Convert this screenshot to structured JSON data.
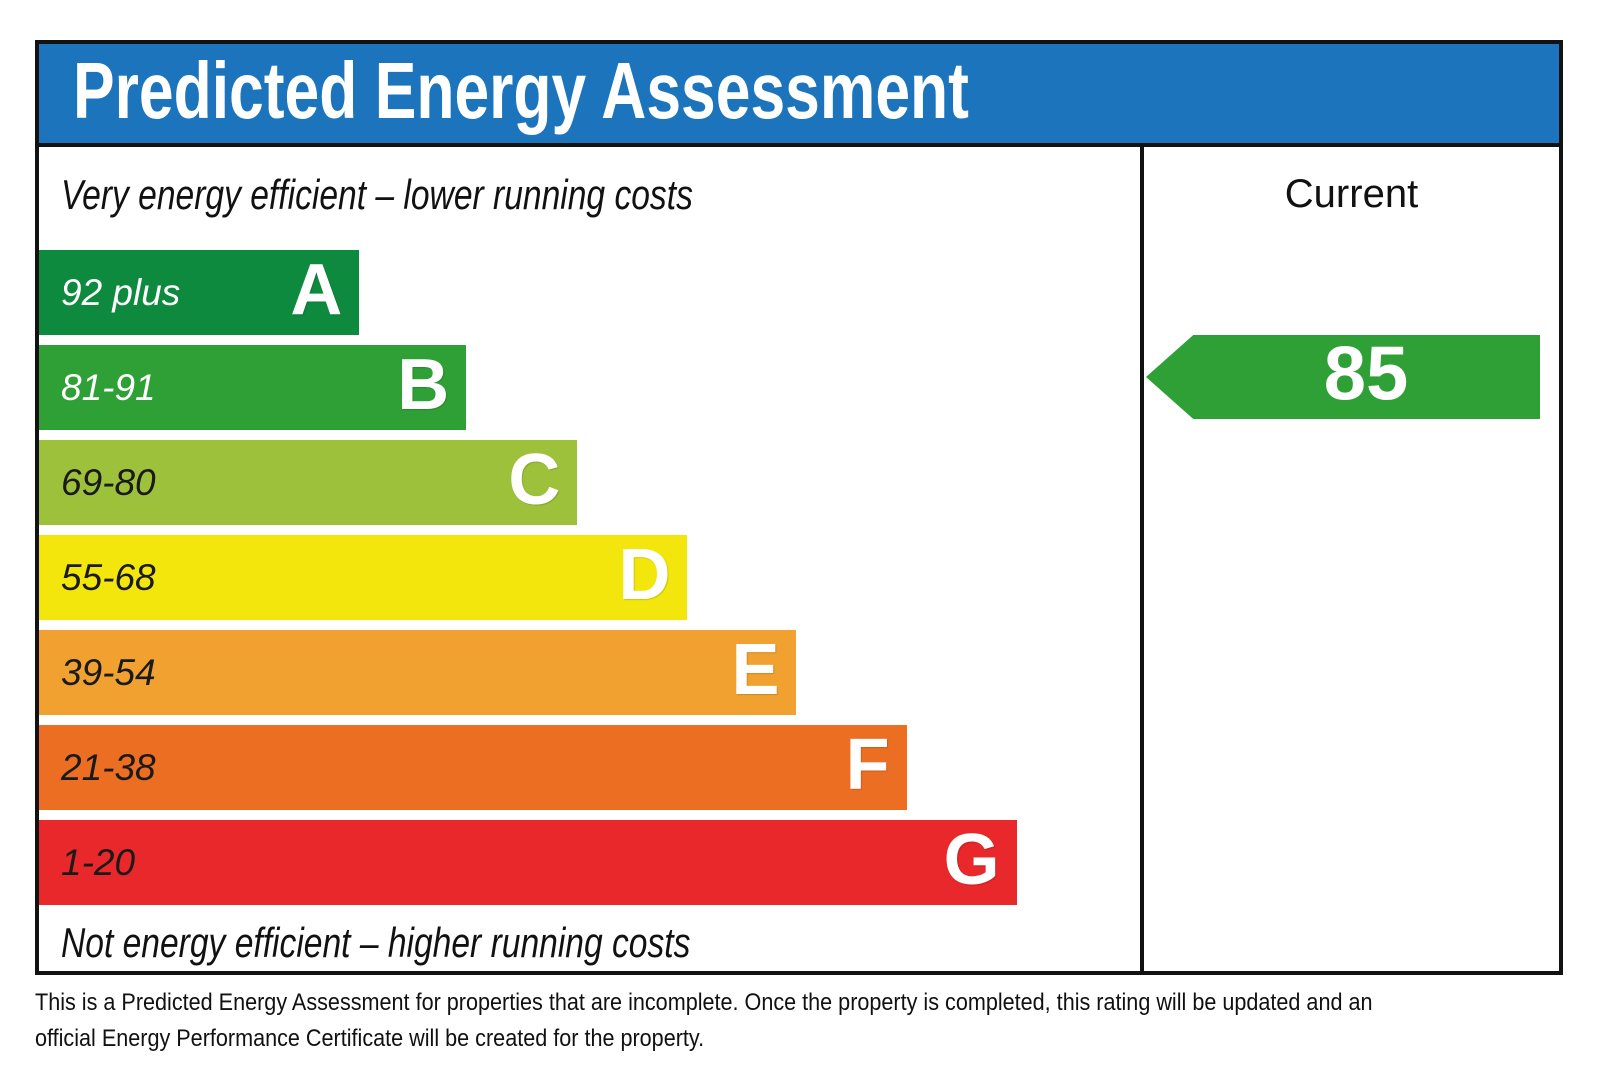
{
  "title": "Predicted Energy Assessment",
  "colors": {
    "header_bg": "#1c75bc",
    "border": "#121212",
    "arrow_green": "#2fa036"
  },
  "left_panel": {
    "top_note": "Very energy efficient – lower running costs",
    "bottom_note": "Not energy efficient – higher running costs"
  },
  "right_panel": {
    "header": "Current",
    "value": "85",
    "arrow_color": "#2fa036"
  },
  "bands": [
    {
      "letter": "A",
      "range": "92 plus",
      "color": "#0e8a3e",
      "width": "29.1%",
      "label_color": "#ffffff"
    },
    {
      "letter": "B",
      "range": "81-91",
      "color": "#2fa036",
      "width": "38.8%",
      "label_color": "#ffffff"
    },
    {
      "letter": "C",
      "range": "69-80",
      "color": "#9ec13c",
      "width": "48.9%",
      "label_color": "#1a1a1a"
    },
    {
      "letter": "D",
      "range": "55-68",
      "color": "#f3e60c",
      "width": "58.9%",
      "label_color": "#1a1a1a"
    },
    {
      "letter": "E",
      "range": "39-54",
      "color": "#f0a12f",
      "width": "68.8%",
      "label_color": "#1a1a1a"
    },
    {
      "letter": "F",
      "range": "21-38",
      "color": "#ec6e23",
      "width": "78.8%",
      "label_color": "#1a1a1a"
    },
    {
      "letter": "G",
      "range": "1-20",
      "color": "#e8282a",
      "width": "88.8%",
      "label_color": "#1a1a1a"
    }
  ],
  "footer": {
    "line1": "This is a Predicted Energy Assessment for properties that are incomplete. Once the property is completed, this rating will be updated and an",
    "line2": "official Energy Performance Certificate will be created for the property."
  },
  "chart_data": {
    "type": "bar",
    "title": "Predicted Energy Assessment",
    "orientation": "horizontal",
    "categories": [
      "A",
      "B",
      "C",
      "D",
      "E",
      "F",
      "G"
    ],
    "band_score_ranges": [
      "92 plus",
      "81-91",
      "69-80",
      "55-68",
      "39-54",
      "21-38",
      "1-20"
    ],
    "band_colors": [
      "#0e8a3e",
      "#2fa036",
      "#9ec13c",
      "#f3e60c",
      "#f0a12f",
      "#ec6e23",
      "#e8282a"
    ],
    "bar_lengths_fraction_of_panel": [
      0.29,
      0.39,
      0.49,
      0.59,
      0.69,
      0.79,
      0.89
    ],
    "series": [
      {
        "name": "Current",
        "value": 85,
        "band": "B",
        "marker": "left-pointing-arrow",
        "color": "#2fa036"
      }
    ],
    "top_annotation": "Very energy efficient – lower running costs",
    "bottom_annotation": "Not energy efficient – higher running costs",
    "footnote": "This is a Predicted Energy Assessment for properties that are incomplete. Once the property is completed, this rating will be updated and an official Energy Performance Certificate will be created for the property.",
    "legend_position": "none",
    "grid": false
  }
}
